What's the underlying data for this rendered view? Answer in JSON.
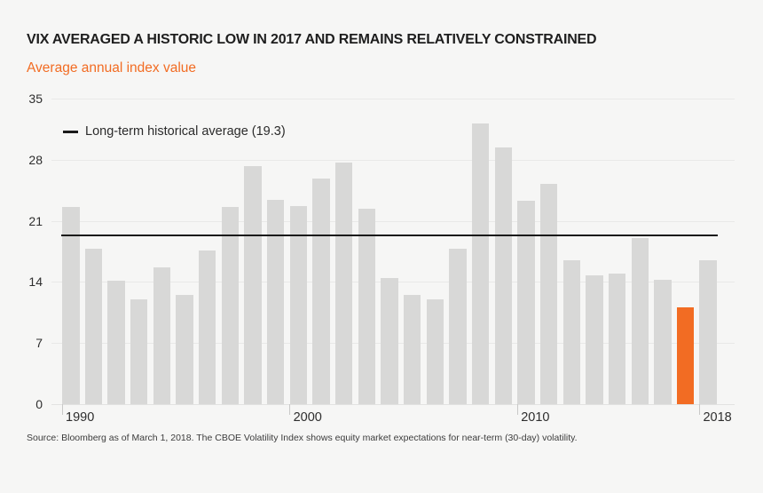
{
  "title": "VIX AVERAGED A HISTORIC LOW IN 2017 AND REMAINS RELATIVELY CONSTRAINED",
  "subtitle": "Average annual index value",
  "legend": {
    "label": "Long-term historical average (19.3)"
  },
  "source": "Source: Bloomberg as of March 1, 2018. The CBOE Volatility Index shows equity market expectations for near-term (30-day) volatility.",
  "colors": {
    "background": "#f6f6f5",
    "bar_gray": "#d8d8d7",
    "bar_highlight_orange": "#f26c23",
    "subtitle_orange": "#f26c23",
    "average_line_black": "#1a1a1a",
    "gridline": "#e9e9e8",
    "text_dark": "#1e1e1e"
  },
  "chart_data": {
    "type": "bar",
    "title": "VIX AVERAGED A HISTORIC LOW IN 2017 AND REMAINS RELATIVELY CONSTRAINED",
    "subtitle": "Average annual index value",
    "xlabel": "",
    "ylabel": "Average annual index value",
    "ylim": [
      0,
      35
    ],
    "yticks": [
      0,
      7,
      14,
      21,
      28,
      35
    ],
    "xtick_years": [
      1990,
      2000,
      2010,
      2018
    ],
    "grid": true,
    "legend_position": "top-left",
    "average_line": 19.3,
    "average_line_label": "Long-term historical average (19.3)",
    "highlight_year": 2017,
    "categories": [
      1990,
      1991,
      1992,
      1993,
      1994,
      1995,
      1996,
      1997,
      1998,
      1999,
      2000,
      2001,
      2002,
      2003,
      2004,
      2005,
      2006,
      2007,
      2008,
      2009,
      2010,
      2011,
      2012,
      2013,
      2014,
      2015,
      2016,
      2017,
      2018
    ],
    "values": [
      22.6,
      17.8,
      14.1,
      12.0,
      15.7,
      12.5,
      17.6,
      22.6,
      27.3,
      23.4,
      22.7,
      25.8,
      27.7,
      22.4,
      14.4,
      12.5,
      12.0,
      17.8,
      32.2,
      29.4,
      23.3,
      25.2,
      16.5,
      14.8,
      15.0,
      19.0,
      14.2,
      11.1,
      16.5
    ]
  }
}
